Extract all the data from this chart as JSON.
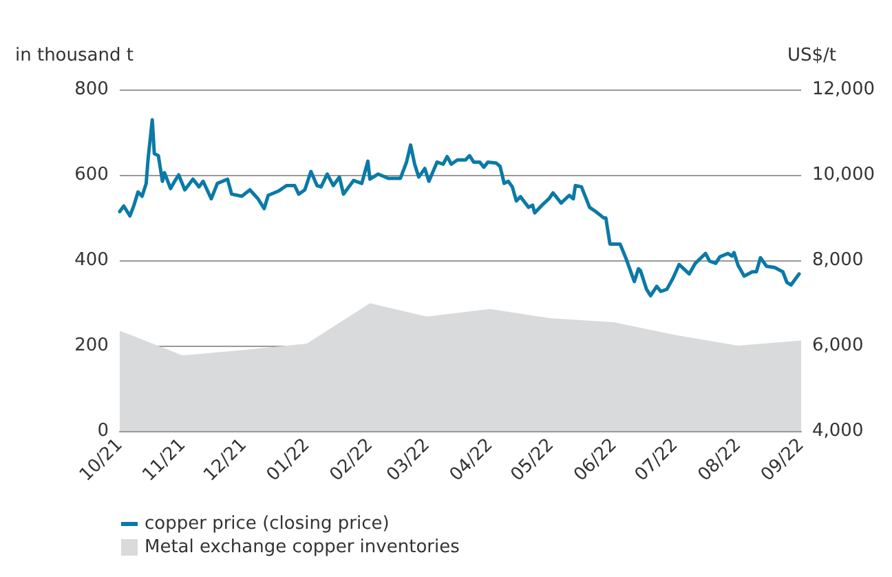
{
  "chart_data": {
    "type": "line",
    "ylabel": "in thousand t",
    "y2label": "US$/t",
    "xlim": [
      "2021-10",
      "2022-09"
    ],
    "xticks": [
      {
        "value": "2021-10",
        "label": "10/21"
      },
      {
        "value": "2021-11",
        "label": "11/21"
      },
      {
        "value": "2021-12",
        "label": "12/21"
      },
      {
        "value": "2022-01",
        "label": "01/22"
      },
      {
        "value": "2022-02",
        "label": "02/22"
      },
      {
        "value": "2022-03",
        "label": "03/22"
      },
      {
        "value": "2022-04",
        "label": "04/22"
      },
      {
        "value": "2022-05",
        "label": "05/22"
      },
      {
        "value": "2022-06",
        "label": "06/22"
      },
      {
        "value": "2022-07",
        "label": "07/22"
      },
      {
        "value": "2022-08",
        "label": "08/22"
      },
      {
        "value": "2022-09",
        "label": "09/22"
      }
    ],
    "ylim": [
      0,
      800
    ],
    "yticks": [
      0,
      200,
      400,
      600,
      800
    ],
    "y2lim": [
      4000,
      12000
    ],
    "y2ticks": [
      {
        "value": 4000,
        "label": "4,000"
      },
      {
        "value": 6000,
        "label": "6,000"
      },
      {
        "value": 8000,
        "label": "8,000"
      },
      {
        "value": 10000,
        "label": "10,000"
      },
      {
        "value": 12000,
        "label": "12,000"
      }
    ],
    "grid": "y",
    "legend": "bottom",
    "marker": "none",
    "series": [
      {
        "name": "Metal exchange copper inventories",
        "type": "area",
        "color": "#d9dadb",
        "x": [
          "2021-10",
          "2021-11",
          "2021-12",
          "2022-01",
          "2022-02",
          "2022-03",
          "2022-04",
          "2022-05",
          "2022-06",
          "2022-07",
          "2022-08",
          "2022-09"
        ],
        "values": [
          235,
          177,
          190,
          205,
          299,
          268,
          286,
          264,
          255,
          225,
          200,
          212
        ]
      },
      {
        "name": "copper price (closing price)",
        "axis": "y2",
        "color": "#0a7aa6",
        "x": [
          "2021-10-01",
          "2021-10-03",
          "2021-10-06",
          "2021-10-08",
          "2021-10-10",
          "2021-10-12",
          "2021-10-14",
          "2021-10-15",
          "2021-10-17",
          "2021-10-18",
          "2021-10-20",
          "2021-10-22",
          "2021-10-23",
          "2021-10-26",
          "2021-10-28",
          "2021-10-30",
          "2021-11-02",
          "2021-11-06",
          "2021-11-09",
          "2021-11-11",
          "2021-11-15",
          "2021-11-18",
          "2021-11-23",
          "2021-11-25",
          "2021-11-30",
          "2021-12-04",
          "2021-12-08",
          "2021-12-11",
          "2021-12-13",
          "2021-12-18",
          "2021-12-22",
          "2021-12-26",
          "2021-12-28",
          "2021-12-31",
          "2022-01-03",
          "2022-01-06",
          "2022-01-08",
          "2022-01-11",
          "2022-01-14",
          "2022-01-17",
          "2022-01-19",
          "2022-01-24",
          "2022-01-28",
          "2022-01-31",
          "2022-02-01",
          "2022-02-05",
          "2022-02-10",
          "2022-02-16",
          "2022-02-19",
          "2022-02-21",
          "2022-02-23",
          "2022-02-25",
          "2022-02-28",
          "2022-03-02",
          "2022-03-06",
          "2022-03-09",
          "2022-03-11",
          "2022-03-13",
          "2022-03-16",
          "2022-03-20",
          "2022-03-22",
          "2022-03-24",
          "2022-03-27",
          "2022-03-29",
          "2022-03-31",
          "2022-04-04",
          "2022-04-06",
          "2022-04-08",
          "2022-04-10",
          "2022-04-12",
          "2022-04-14",
          "2022-04-16",
          "2022-04-20",
          "2022-04-22",
          "2022-04-23",
          "2022-04-27",
          "2022-04-30",
          "2022-05-02",
          "2022-05-06",
          "2022-05-10",
          "2022-05-12",
          "2022-05-13",
          "2022-05-16",
          "2022-05-20",
          "2022-05-23",
          "2022-05-27",
          "2022-05-28",
          "2022-05-30",
          "2022-06-02",
          "2022-06-04",
          "2022-06-07",
          "2022-06-10",
          "2022-06-11",
          "2022-06-13",
          "2022-06-14",
          "2022-06-17",
          "2022-06-19",
          "2022-06-22",
          "2022-06-24",
          "2022-06-27",
          "2022-06-30",
          "2022-07-03",
          "2022-07-08",
          "2022-07-11",
          "2022-07-16",
          "2022-07-18",
          "2022-07-21",
          "2022-07-23",
          "2022-07-27",
          "2022-07-29",
          "2022-07-30",
          "2022-08-01",
          "2022-08-04",
          "2022-08-08",
          "2022-08-10",
          "2022-08-12",
          "2022-08-15",
          "2022-08-19",
          "2022-08-23",
          "2022-08-25",
          "2022-08-27",
          "2022-08-31"
        ],
        "values": [
          9140,
          9270,
          9040,
          9290,
          9600,
          9500,
          9800,
          10400,
          11290,
          10500,
          10450,
          9850,
          10050,
          9680,
          9850,
          10000,
          9650,
          9900,
          9720,
          9850,
          9440,
          9800,
          9900,
          9550,
          9500,
          9650,
          9440,
          9210,
          9520,
          9620,
          9750,
          9750,
          9550,
          9650,
          10080,
          9750,
          9720,
          10020,
          9750,
          9950,
          9550,
          9870,
          9800,
          10320,
          9900,
          10020,
          9920,
          9920,
          10300,
          10700,
          10250,
          9950,
          10150,
          9850,
          10300,
          10250,
          10430,
          10250,
          10350,
          10350,
          10450,
          10300,
          10300,
          10180,
          10300,
          10280,
          10200,
          9800,
          9850,
          9720,
          9390,
          9490,
          9240,
          9290,
          9110,
          9310,
          9440,
          9580,
          9340,
          9520,
          9440,
          9750,
          9720,
          9240,
          9140,
          8990,
          8990,
          8380,
          8380,
          8380,
          8030,
          7630,
          7500,
          7800,
          7760,
          7320,
          7170,
          7390,
          7270,
          7320,
          7580,
          7900,
          7680,
          7930,
          8160,
          7980,
          7930,
          8080,
          8160,
          8100,
          8180,
          7880,
          7630,
          7730,
          7730,
          8060,
          7860,
          7830,
          7730,
          7480,
          7420,
          7680
        ]
      }
    ]
  }
}
